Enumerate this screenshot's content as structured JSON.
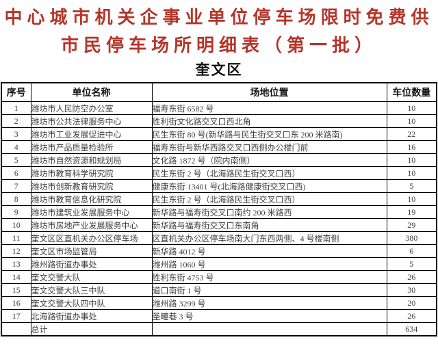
{
  "title": {
    "line1": "中心城市机关企事业单位停车场限时免费供",
    "line2": "市民停车场所明细表（第一批）"
  },
  "region": "奎文区",
  "table": {
    "headers": [
      "序号",
      "单位名称",
      "场地位置",
      "车位数量"
    ],
    "rows": [
      [
        "1",
        "潍坊市人民防空办公室",
        "福寿东街 6582 号",
        "10"
      ],
      [
        "2",
        "潍坊市公共法律服务中心",
        "胜利街文化路交叉口西北角",
        "10"
      ],
      [
        "3",
        "潍坊市工业发展促进中心",
        "民生东街 80 号(新华路与民生街交叉口东 200 米路南)",
        "22"
      ],
      [
        "4",
        "潍坊市产品质量检验所",
        "福寿东街与新华西路交叉口西侧办公楼门前",
        "16"
      ],
      [
        "5",
        "潍坊市自然资源和规划局",
        "文化路 1872 号（院内南侧）",
        "10"
      ],
      [
        "6",
        "潍坊市教育科学研究院",
        "民生东街 2 号（北海路民生街交叉口西）",
        "10"
      ],
      [
        "7",
        "潍坊市创新教育研究院",
        "健康东街 13401 号(北海路健康街交叉口西)",
        "5"
      ],
      [
        "8",
        "潍坊市教育信息化研究院",
        "民生东街 2 号（北海路民生街交叉口西）",
        "10"
      ],
      [
        "9",
        "潍坊市建筑业发展服务中心",
        "新华路与福寿街交叉口南约 200 米路西",
        "19"
      ],
      [
        "10",
        "潍坊市房地产业发展服务中心",
        "新华路与福寿街交叉口东南角",
        "29"
      ],
      [
        "11",
        "奎文区区直机关办公区停车场",
        "区直机关办公区停车场南大门东西两侧、4 号楼南侧",
        "380"
      ],
      [
        "12",
        "奎文区市场监管局",
        "新华路 4012 号",
        "6"
      ],
      [
        "13",
        "潍州路街道办事处",
        "潍州路 1060 号",
        "5"
      ],
      [
        "14",
        "奎文交警大队",
        "胜利东街 4753 号",
        "26"
      ],
      [
        "15",
        "奎文交警大队三中队",
        "道口南街 1 号",
        "30"
      ],
      [
        "16",
        "奎文交警大队四中队",
        "潍州路 3299 号",
        "20"
      ],
      [
        "17",
        "北海路街道办事处",
        "圣疃巷 3 号",
        "26"
      ]
    ],
    "total_label": "总计",
    "total_value": "634"
  },
  "colors": {
    "title_red": "#b5352a",
    "body_text": "#3d3d3d",
    "border": "#000000"
  }
}
